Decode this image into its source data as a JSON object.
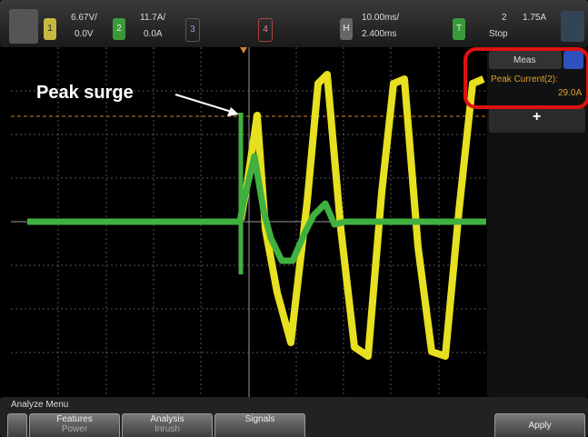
{
  "header": {
    "ch1": {
      "number": "1",
      "scale": "6.67V/",
      "offset": "0.0V"
    },
    "ch2": {
      "number": "2",
      "scale": "11.7A/",
      "offset": "0.0A"
    },
    "ch3": {
      "number": "3"
    },
    "ch4": {
      "number": "4"
    },
    "horizontal": {
      "label": "H",
      "scale": "10.00ms/",
      "delay": "2.400ms"
    },
    "trigger": {
      "label": "T",
      "source": "2",
      "level": "1.75A",
      "status": "Stop"
    }
  },
  "measurements": {
    "title": "Meas",
    "items": [
      {
        "label": "Peak Current(2):",
        "value": "29.0A"
      }
    ],
    "add": "+"
  },
  "annotation": "Peak surge",
  "menu": {
    "title": "Analyze Menu",
    "buttons": [
      {
        "label": "Features",
        "value": "Power"
      },
      {
        "label": "Analysis",
        "value": "Inrush"
      },
      {
        "label": "Signals"
      }
    ],
    "apply": "Apply"
  }
}
